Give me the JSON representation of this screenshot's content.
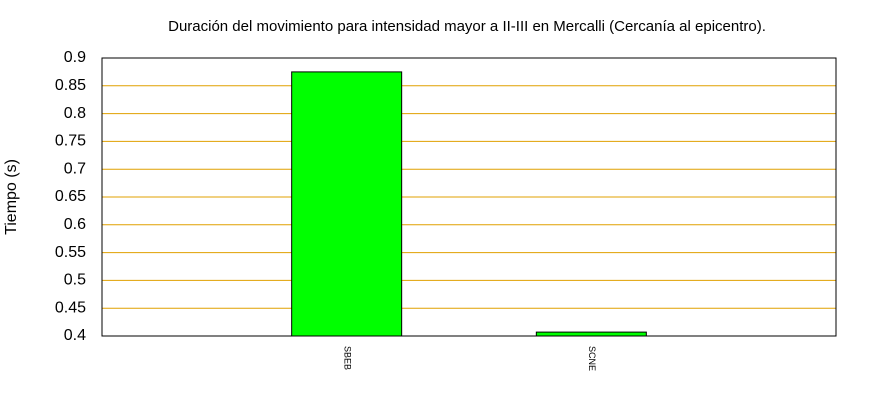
{
  "chart_data": {
    "type": "bar",
    "title": "Duración del movimiento para intensidad mayor a II-III en Mercalli (Cercanía al epicentro).",
    "ylabel": "Tiempo (s)",
    "categories": [
      "SBEB",
      "SCNE"
    ],
    "values": [
      0.875,
      0.407
    ],
    "color": "#00ff00",
    "ylim": [
      0.4,
      0.9
    ],
    "yticks": [
      0.4,
      0.45,
      0.5,
      0.55,
      0.6,
      0.65,
      0.7,
      0.75,
      0.8,
      0.85,
      0.9
    ],
    "grid": true,
    "grid_color": "#e0a000"
  }
}
